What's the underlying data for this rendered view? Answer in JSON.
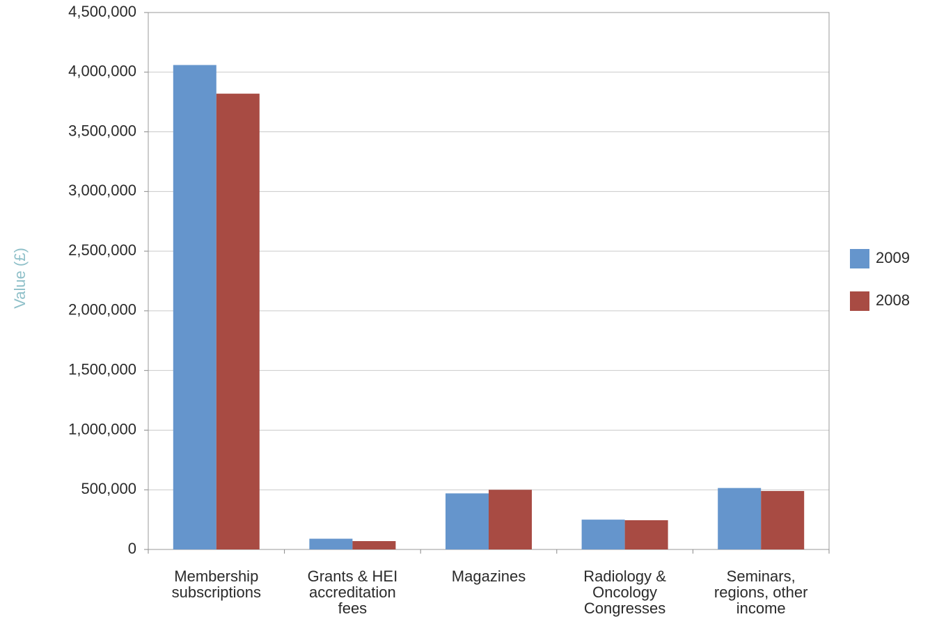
{
  "chart_data": {
    "type": "bar",
    "y_label": "Value (£)",
    "categories": [
      "Membership subscriptions",
      "Grants & HEI accreditation fees",
      "Magazines",
      "Radiology & Oncology Congresses",
      "Seminars, regions, other income"
    ],
    "series": [
      {
        "name": "2009",
        "color": "#6595cc",
        "values": [
          4060000,
          90000,
          470000,
          250000,
          515000
        ]
      },
      {
        "name": "2008",
        "color": "#a84b43",
        "values": [
          3820000,
          70000,
          500000,
          245000,
          490000
        ]
      }
    ],
    "ylim": [
      0,
      4500000
    ],
    "yticks": [
      0,
      {
        "value": 500000,
        "label": "500,000"
      },
      {
        "value": 1000000,
        "label": "1,000,000"
      },
      {
        "value": 1500000,
        "label": "1,500,000"
      },
      {
        "value": 2000000,
        "label": "2,000,000"
      },
      {
        "value": 2500000,
        "label": "2,500,000"
      },
      {
        "value": 3000000,
        "label": "3,000,000"
      },
      {
        "value": 3500000,
        "label": "3,500,000"
      },
      {
        "value": 4000000,
        "label": "4,000,000"
      },
      {
        "value": 4500000,
        "label": "4,500,000"
      }
    ],
    "grid": true,
    "legend": "right"
  }
}
